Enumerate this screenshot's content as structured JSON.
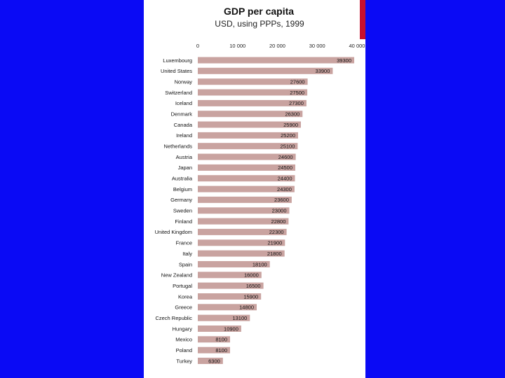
{
  "colors": {
    "background": "#0a0af5",
    "slide": "#ffffff",
    "bar": "#c9a3a0",
    "accent": "#c8102e"
  },
  "chart_data": {
    "type": "bar",
    "orientation": "horizontal",
    "title": "GDP per capita",
    "subtitle": "USD, using PPPs, 1999",
    "xlim": [
      0,
      40000
    ],
    "xticks": [
      0,
      10000,
      20000,
      30000,
      40000
    ],
    "xtick_labels": [
      "0",
      "10 000",
      "20 000",
      "30 000",
      "40 000"
    ],
    "categories": [
      "Luxembourg",
      "United States",
      "Norway",
      "Switzerland",
      "Iceland",
      "Denmark",
      "Canada",
      "Ireland",
      "Netherlands",
      "Austria",
      "Japan",
      "Australia",
      "Belgium",
      "Germany",
      "Sweden",
      "Finland",
      "United Kingdom",
      "France",
      "Italy",
      "Spain",
      "New Zealand",
      "Portugal",
      "Korea",
      "Greece",
      "Czech Republic",
      "Hungary",
      "Mexico",
      "Poland",
      "Turkey"
    ],
    "values": [
      39300,
      33900,
      27600,
      27500,
      27300,
      26300,
      25900,
      25200,
      25100,
      24600,
      24500,
      24400,
      24300,
      23600,
      23000,
      22800,
      22300,
      21900,
      21800,
      18100,
      16000,
      16500,
      15900,
      14800,
      13100,
      10900,
      8100,
      8100,
      6300
    ],
    "value_labels": [
      "39300",
      "33900",
      "27600",
      "27500",
      "27300",
      "26300",
      "25900",
      "25200",
      "25100",
      "24600",
      "24500",
      "24400",
      "24300",
      "23600",
      "23000",
      "22800",
      "22300",
      "21900",
      "21800",
      "18100",
      "16000",
      "16500",
      "15900",
      "14800",
      "13100",
      "10900",
      "8100",
      "8100",
      "6300"
    ]
  }
}
